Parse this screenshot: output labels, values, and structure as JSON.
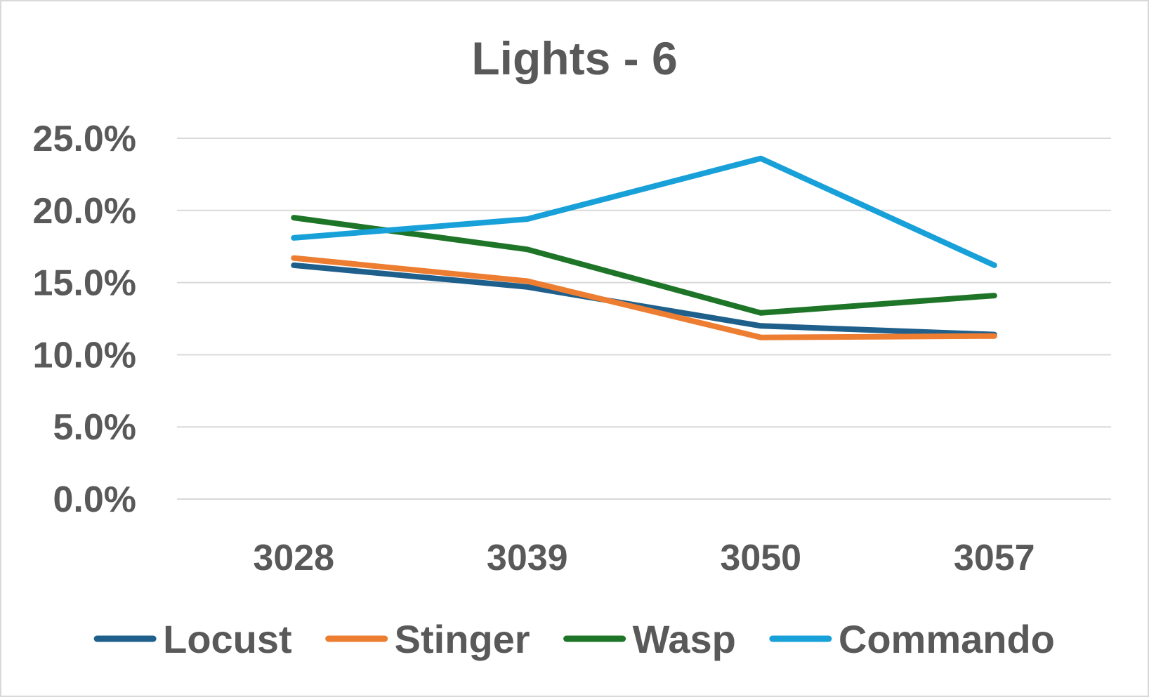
{
  "chart_data": {
    "type": "line",
    "title": "Lights - 6",
    "xlabel": "",
    "ylabel": "",
    "categories": [
      "3028",
      "3039",
      "3050",
      "3057"
    ],
    "ylim": [
      0,
      25
    ],
    "y_ticks": [
      0,
      5,
      10,
      15,
      20,
      25
    ],
    "y_tick_labels": [
      "0.0%",
      "5.0%",
      "10.0%",
      "15.0%",
      "20.0%",
      "25.0%"
    ],
    "y_unit": "%",
    "grid": true,
    "legend_position": "bottom",
    "series": [
      {
        "name": "Locust",
        "color": "#1f5f8b",
        "values": [
          16.2,
          14.7,
          12.0,
          11.4
        ]
      },
      {
        "name": "Stinger",
        "color": "#ed7d31",
        "values": [
          16.7,
          15.1,
          11.2,
          11.3
        ]
      },
      {
        "name": "Wasp",
        "color": "#1e7528",
        "values": [
          19.5,
          17.3,
          12.9,
          14.1
        ]
      },
      {
        "name": "Commando",
        "color": "#18a0d8",
        "values": [
          18.1,
          19.4,
          23.6,
          16.2
        ]
      }
    ]
  }
}
